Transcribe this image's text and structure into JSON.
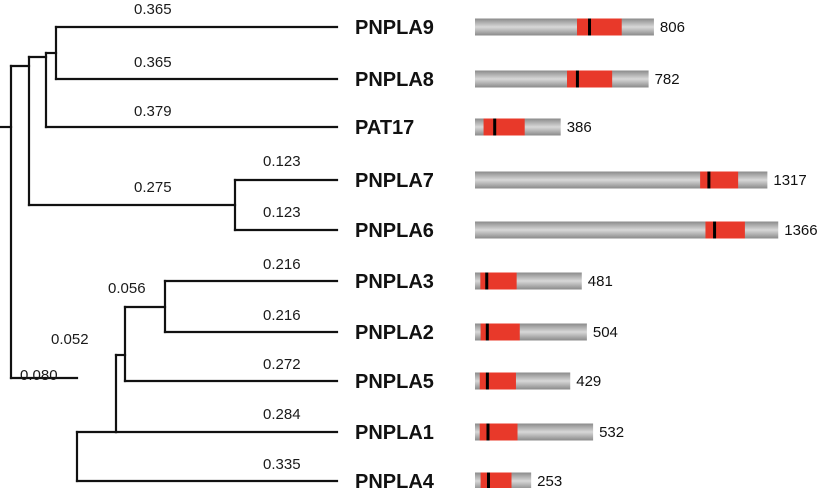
{
  "colors": {
    "protein_bar_edge": "#8a8a8a",
    "protein_bar_center": "#d8d8d8",
    "patatin_domain": "#e8392a",
    "active_site_motif": "#000000",
    "branch": "#111111"
  },
  "proteins": [
    {
      "name": "PNPLA9",
      "length": 806,
      "domain_start": 0.57,
      "domain_end": 0.82,
      "motif": 0.64
    },
    {
      "name": "PNPLA8",
      "length": 782,
      "domain_start": 0.53,
      "domain_end": 0.79,
      "motif": 0.59
    },
    {
      "name": "PAT17",
      "length": 386,
      "domain_start": 0.1,
      "domain_end": 0.58,
      "motif": 0.23
    },
    {
      "name": "PNPLA7",
      "length": 1317,
      "domain_start": 0.77,
      "domain_end": 0.9,
      "motif": 0.8
    },
    {
      "name": "PNPLA6",
      "length": 1366,
      "domain_start": 0.76,
      "domain_end": 0.89,
      "motif": 0.79
    },
    {
      "name": "PNPLA3",
      "length": 481,
      "domain_start": 0.05,
      "domain_end": 0.39,
      "motif": 0.11
    },
    {
      "name": "PNPLA2",
      "length": 504,
      "domain_start": 0.05,
      "domain_end": 0.4,
      "motif": 0.11
    },
    {
      "name": "PNPLA5",
      "length": 429,
      "domain_start": 0.05,
      "domain_end": 0.43,
      "motif": 0.13
    },
    {
      "name": "PNPLA1",
      "length": 532,
      "domain_start": 0.04,
      "domain_end": 0.36,
      "motif": 0.11
    },
    {
      "name": "PNPLA4",
      "length": 253,
      "domain_start": 0.1,
      "domain_end": 0.65,
      "motif": 0.24
    }
  ],
  "branch_lengths": {
    "pnpla9": "0.365",
    "pnpla8": "0.365",
    "pat17": "0.379",
    "pnpla7": "0.123",
    "pnpla6": "0.123",
    "clade_67": "0.275",
    "pnpla3": "0.216",
    "pnpla2": "0.216",
    "clade_32": "0.056",
    "pnpla5": "0.272",
    "clade_325": "0.052",
    "pnpla1": "0.284",
    "clade_3251": "0.080",
    "pnpla4": "0.335"
  }
}
